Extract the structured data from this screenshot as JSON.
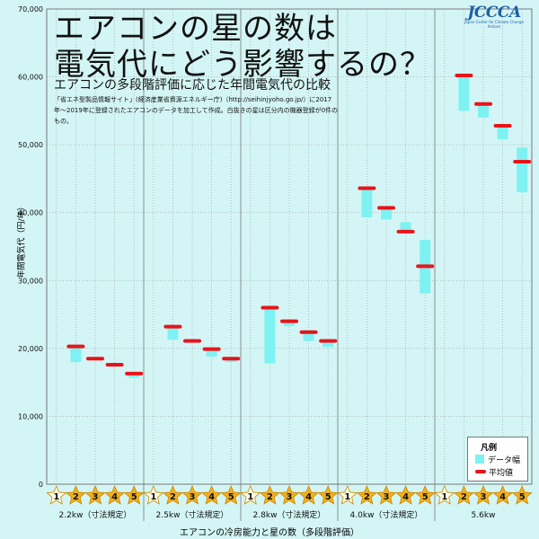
{
  "title_line1": "エアコンの星の数は",
  "title_line2": "電気代にどう影響するの？",
  "subtitle": "エアコンの多段階評価に応じた年間電気代の比較",
  "note": "「省エネ型製品情報サイト」(経済産業省資源エネルギー庁)（http://seihinjyoho.go.jp/）に2017年〜2019年に登録されたエアコンのデータを加工して作成。白抜きの星は区分内の機器登録が0件のもの。",
  "logo": {
    "text": "JCCCA",
    "sub": "Japan Center for Climate Change Actions"
  },
  "legend": {
    "title": "凡例",
    "range_label": "データ幅",
    "avg_label": "平均値"
  },
  "colors": {
    "range": "#7ef2f2",
    "avg": "#e8141a",
    "star": "#f2b01e",
    "grid": "#9a9a9a",
    "background": "#d4f5f5"
  },
  "chart_data": {
    "type": "bar",
    "xlabel": "エアコンの冷房能力と星の数（多段階評価）",
    "ylabel": "年間電気代（円/年）",
    "ylim": [
      0,
      70000
    ],
    "yticks": [
      0,
      10000,
      20000,
      30000,
      40000,
      50000,
      60000,
      70000
    ],
    "ytick_labels": [
      "0",
      "10,000",
      "20,000",
      "30,000",
      "40,000",
      "50,000",
      "60,000",
      "70,000"
    ],
    "grid": true,
    "legend_position": "bottom-right",
    "groups": [
      {
        "label": "2.2kw（寸法規定）",
        "stars": [
          {
            "star": "1",
            "hollow": true
          },
          {
            "star": "2",
            "min": 18000,
            "max": 20500,
            "avg": 20300
          },
          {
            "star": "3",
            "min": 18300,
            "max": 18700,
            "avg": 18500
          },
          {
            "star": "4",
            "min": 17300,
            "max": 17800,
            "avg": 17600
          },
          {
            "star": "5",
            "min": 15700,
            "max": 16400,
            "avg": 16300
          }
        ]
      },
      {
        "label": "2.5kw（寸法規定）",
        "stars": [
          {
            "star": "1",
            "hollow": true
          },
          {
            "star": "2",
            "min": 21300,
            "max": 23400,
            "avg": 23200
          },
          {
            "star": "3",
            "min": 20900,
            "max": 21300,
            "avg": 21100
          },
          {
            "star": "4",
            "min": 18800,
            "max": 20000,
            "avg": 19900
          },
          {
            "star": "5",
            "min": 18000,
            "max": 18600,
            "avg": 18500
          }
        ]
      },
      {
        "label": "2.8kw（寸法規定）",
        "stars": [
          {
            "star": "1",
            "hollow": true
          },
          {
            "star": "2",
            "min": 17800,
            "max": 26000,
            "avg": 26000
          },
          {
            "star": "3",
            "min": 23300,
            "max": 24300,
            "avg": 24000
          },
          {
            "star": "4",
            "min": 21100,
            "max": 22700,
            "avg": 22400
          },
          {
            "star": "5",
            "min": 20200,
            "max": 21300,
            "avg": 21100
          }
        ]
      },
      {
        "label": "4.0kw（寸法規定）",
        "stars": [
          {
            "star": "1",
            "hollow": true
          },
          {
            "star": "2",
            "min": 39300,
            "max": 43800,
            "avg": 43600
          },
          {
            "star": "3",
            "min": 39000,
            "max": 40900,
            "avg": 40700
          },
          {
            "star": "4",
            "min": 37100,
            "max": 38600,
            "avg": 37200
          },
          {
            "star": "5",
            "min": 28100,
            "max": 36000,
            "avg": 32100
          }
        ]
      },
      {
        "label": "5.6kw",
        "stars": [
          {
            "star": "1",
            "hollow": true
          },
          {
            "star": "2",
            "min": 55000,
            "max": 60400,
            "avg": 60200
          },
          {
            "star": "3",
            "min": 54000,
            "max": 56200,
            "avg": 56000
          },
          {
            "star": "4",
            "min": 50800,
            "max": 52900,
            "avg": 52800
          },
          {
            "star": "5",
            "min": 43000,
            "max": 49600,
            "avg": 47500
          }
        ]
      }
    ]
  }
}
